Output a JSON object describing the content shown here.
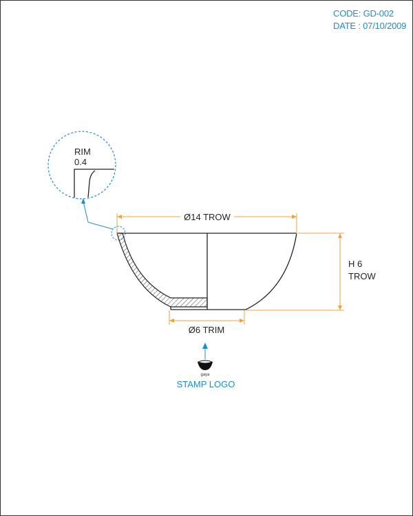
{
  "header": {
    "code": "CODE: GD-002",
    "date": "DATE : 07/10/2009"
  },
  "detail": {
    "title": "RIM",
    "value": "0.4"
  },
  "dimensions": {
    "diameter_top": "Ø14 TROW",
    "diameter_bottom": "Ø6 TRIM",
    "height_line1": "H 6",
    "height_line2": "TROW"
  },
  "stamp": {
    "logo_text": "gaya",
    "label": "STAMP LOGO"
  },
  "colors": {
    "accent": "#1a8fc8",
    "dimension": "#f0a040",
    "line": "#222222",
    "hatch": "#444444"
  }
}
